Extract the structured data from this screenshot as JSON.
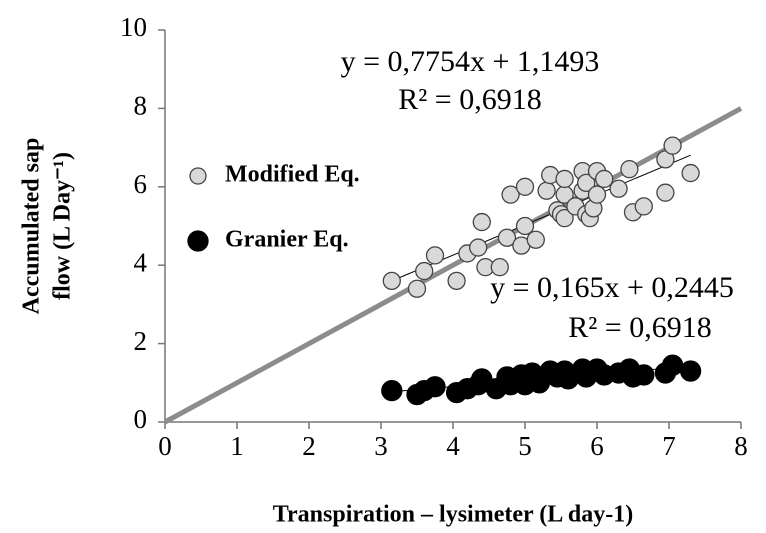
{
  "chart_data": {
    "type": "scatter",
    "xlabel": "Transpiration – lysimeter (L day-1)",
    "ylabel": [
      "Accumulated sap",
      "flow (L Day⁻¹)"
    ],
    "annotations": [
      "y = 0,7754x + 1,1493",
      "R² = 0,6918",
      "y = 0,165x + 0,2445",
      "R² = 0,6918"
    ],
    "xlim": [
      0,
      8
    ],
    "ylim": [
      0,
      10
    ],
    "xticks": [
      0,
      1,
      2,
      3,
      4,
      5,
      6,
      7,
      8
    ],
    "yticks": [
      0,
      2,
      4,
      6,
      8,
      10
    ],
    "grid": false,
    "trendline": true,
    "identity_line": true,
    "legend": "left",
    "series": [
      {
        "name": "Modified Eq.",
        "color": "#d9d9d9",
        "x": [
          3.15,
          3.5,
          3.6,
          3.75,
          4.05,
          4.2,
          4.35,
          4.4,
          4.45,
          4.65,
          4.75,
          4.8,
          4.95,
          5.0,
          5.0,
          5.15,
          5.3,
          5.35,
          5.45,
          5.5,
          5.55,
          5.55,
          5.55,
          5.7,
          5.8,
          5.8,
          5.85,
          5.85,
          5.9,
          5.95,
          6.0,
          6.0,
          6.1,
          6.3,
          6.45,
          6.5,
          6.65,
          6.95,
          6.95,
          7.05,
          7.3
        ],
        "values": [
          3.6,
          3.4,
          3.85,
          4.25,
          3.6,
          4.3,
          4.45,
          5.1,
          3.95,
          3.95,
          4.7,
          5.8,
          4.5,
          5.0,
          6.0,
          4.65,
          5.9,
          6.3,
          5.4,
          5.3,
          5.8,
          5.2,
          6.2,
          5.5,
          6.4,
          5.9,
          6.1,
          5.3,
          5.2,
          5.45,
          6.4,
          5.8,
          6.2,
          5.95,
          6.45,
          5.35,
          5.5,
          5.85,
          6.7,
          7.05,
          6.35
        ]
      },
      {
        "name": "Granier Eq.",
        "color": "#000000",
        "x": [
          3.15,
          3.5,
          3.6,
          3.75,
          4.05,
          4.2,
          4.35,
          4.4,
          4.6,
          4.75,
          4.8,
          4.95,
          5.0,
          5.1,
          5.2,
          5.35,
          5.45,
          5.55,
          5.6,
          5.8,
          5.85,
          5.95,
          6.0,
          6.1,
          6.3,
          6.45,
          6.5,
          6.65,
          6.95,
          7.05,
          7.3
        ],
        "values": [
          0.8,
          0.7,
          0.8,
          0.9,
          0.75,
          0.85,
          0.95,
          1.1,
          0.85,
          1.15,
          0.95,
          1.2,
          0.95,
          1.25,
          1.0,
          1.3,
          1.15,
          1.3,
          1.1,
          1.35,
          1.15,
          1.3,
          1.35,
          1.2,
          1.25,
          1.35,
          1.15,
          1.2,
          1.25,
          1.45,
          1.3
        ]
      }
    ]
  }
}
